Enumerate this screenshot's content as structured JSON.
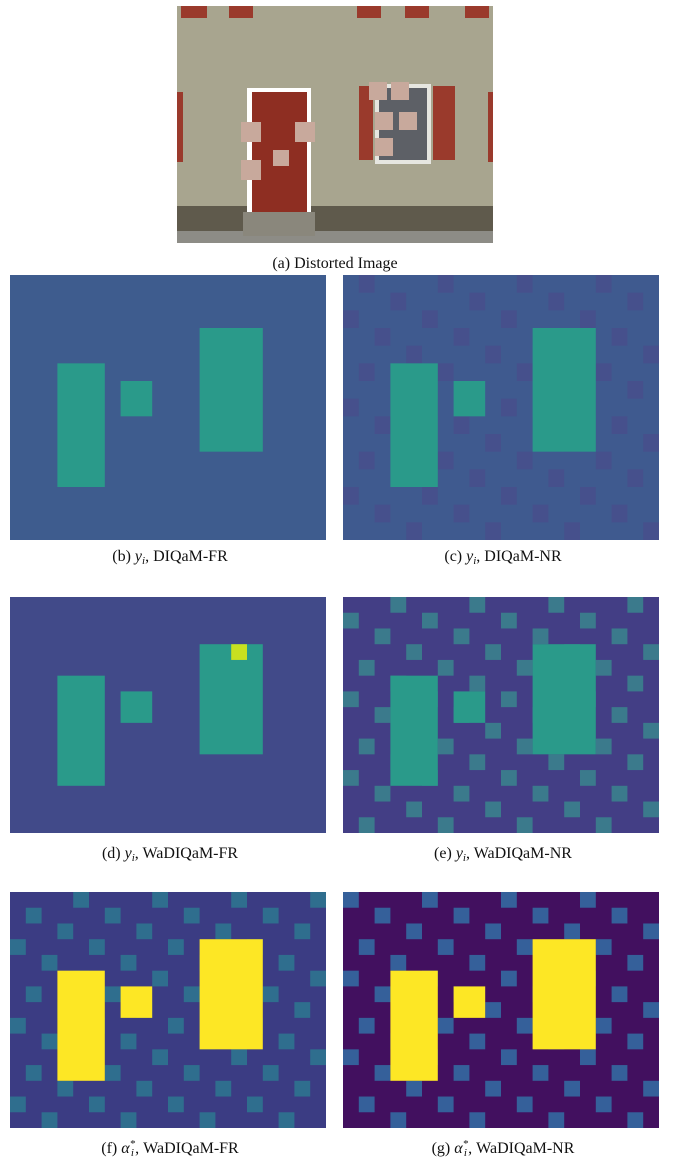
{
  "figure": {
    "captions": [
      {
        "label": "(a)",
        "text": "Distorted Image"
      },
      {
        "label": "(b)",
        "symbol": "y",
        "sub": "i",
        "text": ", DIQaM-FR"
      },
      {
        "label": "(c)",
        "symbol": "y",
        "sub": "i",
        "text": ", DIQaM-NR"
      },
      {
        "label": "(d)",
        "symbol": "y",
        "sub": "i",
        "text": ", WaDIQaM-FR"
      },
      {
        "label": "(e)",
        "symbol": "y",
        "sub": "i",
        "text": ", WaDIQaM-NR"
      },
      {
        "label": "(f)",
        "symbol": "α",
        "sup": "*",
        "sub": "i",
        "text": ", WaDIQaM-FR"
      },
      {
        "label": "(g)",
        "symbol": "α",
        "sup": "*",
        "sub": "i",
        "text": ", WaDIQaM-NR"
      }
    ]
  }
}
